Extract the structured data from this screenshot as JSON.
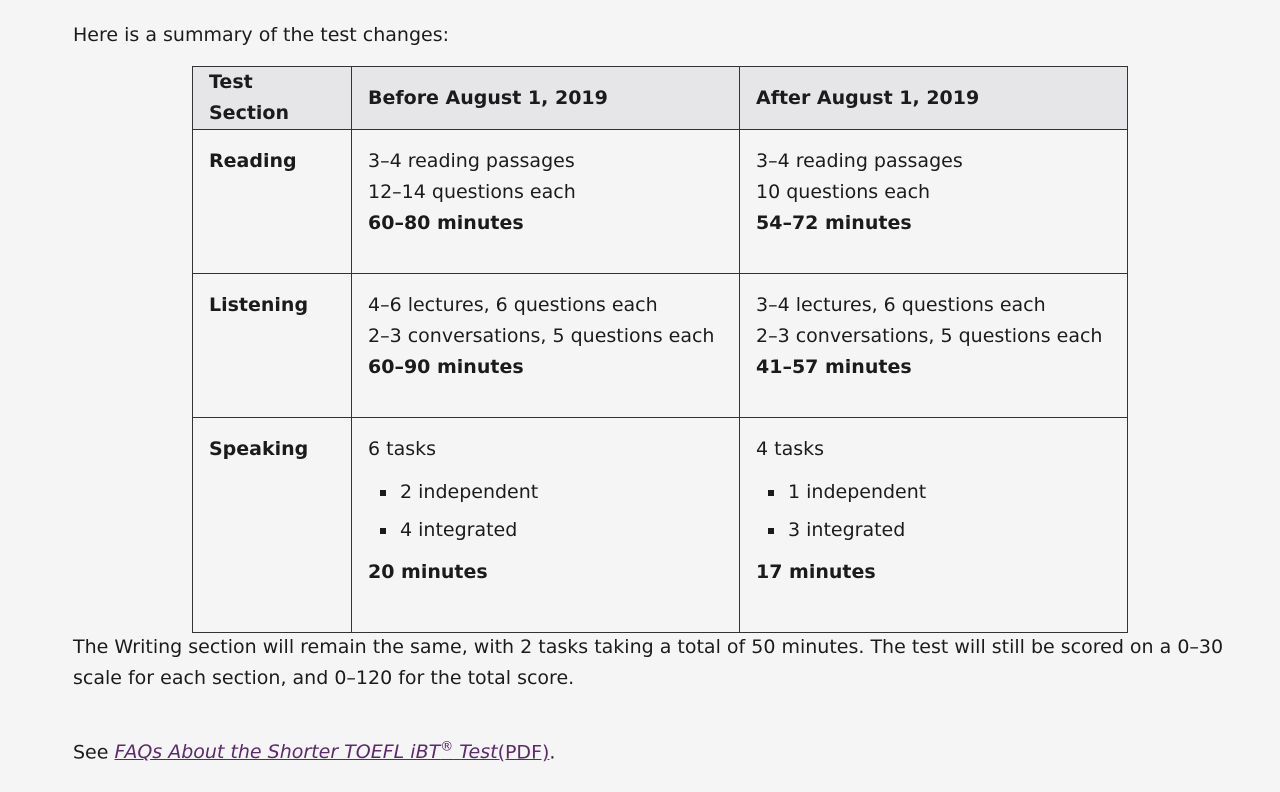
{
  "intro": "Here is a summary of the test changes:",
  "table": {
    "header": [
      "Test Section",
      "Before August 1, 2019",
      "After August 1, 2019"
    ],
    "rows": [
      {
        "section": "Reading",
        "before": {
          "lines": [
            "3–4 reading passages",
            "12–14 questions each"
          ],
          "time": "60–80 minutes"
        },
        "after": {
          "lines": [
            "3–4 reading passages",
            "10 questions each"
          ],
          "time": "54–72 minutes"
        }
      },
      {
        "section": "Listening",
        "before": {
          "lines": [
            "4–6 lectures, 6 questions each",
            "2–3 conversations, 5 questions each"
          ],
          "time": "60–90 minutes"
        },
        "after": {
          "lines": [
            "3–4 lectures, 6 questions each",
            "2–3 conversations, 5 questions each"
          ],
          "time": "41–57 minutes"
        }
      },
      {
        "section": "Speaking",
        "before": {
          "lines": [
            "6 tasks"
          ],
          "bullets": [
            "2 independent",
            "4 integrated"
          ],
          "time": "20 minutes"
        },
        "after": {
          "lines": [
            "4 tasks"
          ],
          "bullets": [
            "1 independent",
            "3 integrated"
          ],
          "time": "17 minutes"
        }
      }
    ]
  },
  "note": "The Writing section will remain the same, with 2 tasks taking a total of 50 minutes. The test will still be scored on a 0–30 scale for each section, and 0–120 for the total score.",
  "see": {
    "prefix": "See",
    "link": "FAQs About the Shorter TOEFL iBT",
    "sup": "®",
    "link_end": "Test",
    "pdf": "(PDF)",
    "suffix": "."
  }
}
